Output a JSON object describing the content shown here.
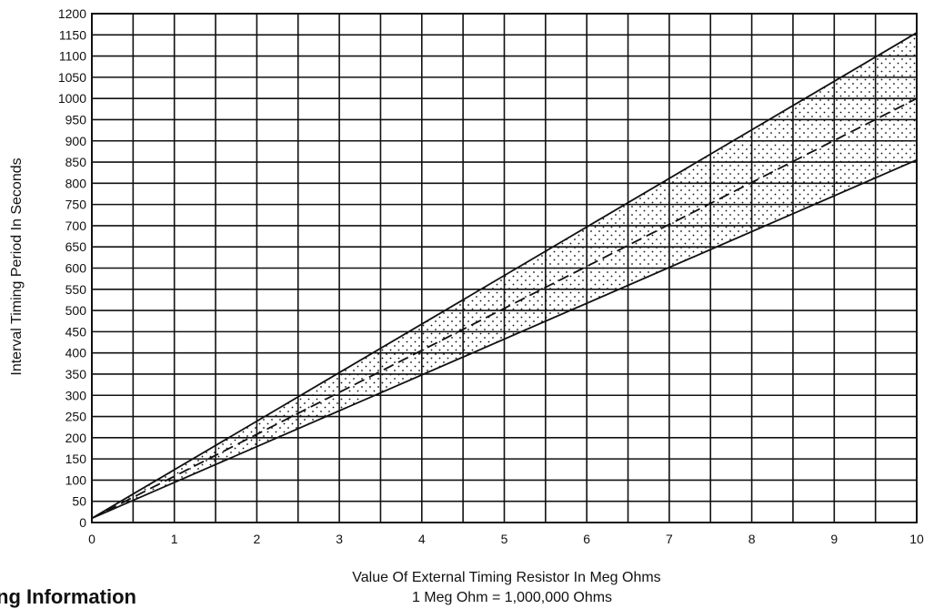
{
  "chart_data": {
    "type": "line",
    "title": "",
    "xlabel": "Value Of External Timing Resistor In Meg Ohms",
    "xlabel_note": "1 Meg Ohm = 1,000,000 Ohms",
    "ylabel": "Interval Timing Period In Seconds",
    "xlim": [
      0,
      10
    ],
    "ylim": [
      0,
      1200
    ],
    "x_ticks": [
      "0",
      "1",
      "2",
      "3",
      "4",
      "5",
      "6",
      "7",
      "8",
      "9",
      "10"
    ],
    "y_ticks": [
      "0",
      "50",
      "100",
      "150",
      "200",
      "250",
      "300",
      "350",
      "400",
      "450",
      "500",
      "550",
      "600",
      "650",
      "700",
      "750",
      "800",
      "850",
      "900",
      "950",
      "1000",
      "1050",
      "1100",
      "1150",
      "1200"
    ],
    "x_grid_step": 0.5,
    "y_grid_step": 50,
    "grid": true,
    "legend": "none",
    "series": [
      {
        "style": "solid",
        "x": [
          0,
          10
        ],
        "y": [
          10,
          1155
        ]
      },
      {
        "style": "dashed",
        "x": [
          0,
          10
        ],
        "y": [
          10,
          1000
        ]
      },
      {
        "style": "solid",
        "x": [
          0,
          10
        ],
        "y": [
          10,
          855
        ]
      }
    ],
    "band": {
      "fill": "dotted",
      "upper_series": 0,
      "lower_series": 2
    }
  },
  "footer": {
    "partial_heading": "ng Information"
  }
}
